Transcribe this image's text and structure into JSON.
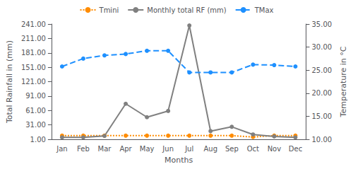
{
  "chart_data": {
    "type": "line",
    "categories": [
      "Jan",
      "Feb",
      "Mar",
      "Apr",
      "May",
      "Jun",
      "Jul",
      "Aug",
      "Sep",
      "Oct",
      "Nov",
      "Dec"
    ],
    "xlabel": "Months",
    "ylabel": "Total Rainfall in (mm)",
    "y2label": "Temperature in °C",
    "ylim": [
      1.0,
      241.0
    ],
    "yticks": [
      {
        "value": 1.0,
        "label": "1.00"
      },
      {
        "value": 31.0,
        "label": "31.00"
      },
      {
        "value": 61.0,
        "label": "61.00"
      },
      {
        "value": 91.0,
        "label": "91.00"
      },
      {
        "value": 121.0,
        "label": "121.00"
      },
      {
        "value": 151.0,
        "label": "151.00"
      },
      {
        "value": 181.0,
        "label": "181.00"
      },
      {
        "value": 211.0,
        "label": "211.00"
      },
      {
        "value": 241.0,
        "label": "241.00"
      }
    ],
    "y2lim": [
      10.0,
      35.0
    ],
    "y2ticks": [
      {
        "value": 10.0,
        "label": "10.00"
      },
      {
        "value": 15.0,
        "label": "15.00"
      },
      {
        "value": 20.0,
        "label": "20.00"
      },
      {
        "value": 25.0,
        "label": "25.00"
      },
      {
        "value": 30.0,
        "label": "30.00"
      },
      {
        "value": 35.0,
        "label": "35.00"
      }
    ],
    "grid": false,
    "legend": "top",
    "series": [
      {
        "name": "Tmini",
        "color": "#FF8C00",
        "axis": "y2",
        "marker": "circle",
        "line_style": "dotted",
        "values": [
          10.8,
          10.8,
          10.8,
          10.8,
          10.8,
          10.8,
          10.8,
          10.8,
          10.8,
          10.5,
          10.8,
          10.8
        ]
      },
      {
        "name": "Monthly total RF (mm)",
        "color": "#808080",
        "axis": "y",
        "marker": "circle",
        "line_style": "solid",
        "values": [
          5,
          5,
          8,
          75,
          47,
          60,
          238,
          18,
          27,
          11,
          7,
          5
        ]
      },
      {
        "name": "TMax",
        "color": "#1E90FF",
        "axis": "y2",
        "marker": "circle",
        "line_style": "dashed",
        "values": [
          25.8,
          27.5,
          28.2,
          28.5,
          29.2,
          29.2,
          24.5,
          24.5,
          24.5,
          26.2,
          26.1,
          25.8
        ]
      }
    ]
  }
}
